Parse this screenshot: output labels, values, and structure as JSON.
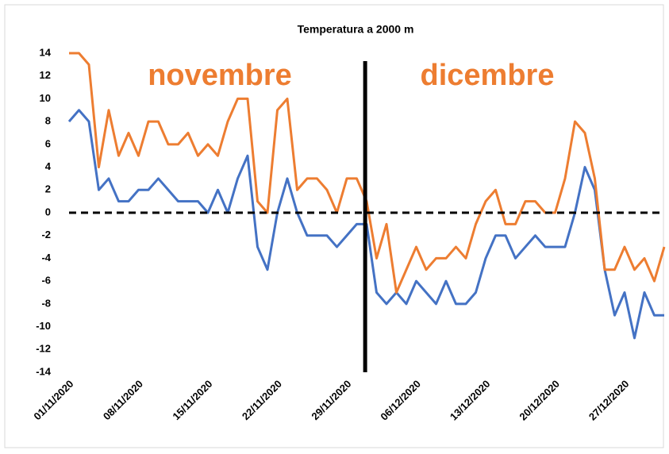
{
  "chart_data": {
    "type": "line",
    "title": "Temperatura a 2000 m",
    "annotations": [
      "novembre",
      "dicembre"
    ],
    "categories": [
      "01/11/2020",
      null,
      null,
      null,
      null,
      null,
      null,
      "08/11/2020",
      null,
      null,
      null,
      null,
      null,
      null,
      "15/11/2020",
      null,
      null,
      null,
      null,
      null,
      null,
      "22/11/2020",
      null,
      null,
      null,
      null,
      null,
      null,
      "29/11/2020",
      null,
      null,
      null,
      null,
      null,
      null,
      "06/12/2020",
      null,
      null,
      null,
      null,
      null,
      null,
      "13/12/2020",
      null,
      null,
      null,
      null,
      null,
      null,
      "20/12/2020",
      null,
      null,
      null,
      null,
      null,
      null,
      "27/12/2020",
      null,
      null,
      null,
      null
    ],
    "series": [
      {
        "color": "#4472c4",
        "values": [
          8,
          9,
          8,
          2,
          3,
          1,
          1,
          2,
          2,
          3,
          2,
          1,
          1,
          1,
          0,
          2,
          0,
          3,
          5,
          -3,
          -5,
          0,
          3,
          0,
          -2,
          -2,
          -2,
          -3,
          -2,
          -1,
          -1,
          -7,
          -8,
          -7,
          -8,
          -6,
          -7,
          -8,
          -6,
          -8,
          -8,
          -7,
          -4,
          -2,
          -2,
          -4,
          -3,
          -2,
          -3,
          -3,
          -3,
          0,
          4,
          2,
          -5,
          -9,
          -7,
          -11,
          -7,
          -9,
          -9
        ]
      },
      {
        "color": "#ed7d31",
        "values": [
          14,
          14,
          13,
          4,
          9,
          5,
          7,
          5,
          8,
          8,
          6,
          6,
          7,
          5,
          6,
          5,
          8,
          10,
          10,
          1,
          0,
          9,
          10,
          2,
          3,
          3,
          2,
          0,
          3,
          3,
          1,
          -4,
          -1,
          -7,
          -5,
          -3,
          -5,
          -4,
          -4,
          -3,
          -4,
          -1,
          1,
          2,
          -1,
          -1,
          1,
          1,
          0,
          0,
          3,
          8,
          7,
          3,
          -5,
          -5,
          -3,
          -5,
          -4,
          -6,
          -3
        ]
      }
    ],
    "hline": 0,
    "ylim": [
      -14,
      14
    ],
    "yticks": [
      -14,
      -12,
      -10,
      -8,
      -6,
      -4,
      -2,
      0,
      2,
      4,
      6,
      8,
      10,
      12,
      14
    ]
  }
}
